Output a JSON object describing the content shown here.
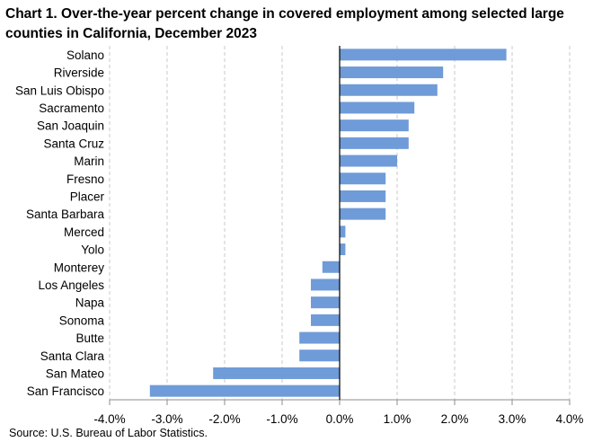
{
  "chart_data": {
    "type": "bar",
    "orientation": "horizontal",
    "title": "Chart 1. Over-the-year percent change in covered employment among selected large counties in California, December 2023",
    "source": "Source: U.S. Bureau of Labor Statistics.",
    "categories": [
      "Solano",
      "Riverside",
      "San Luis Obispo",
      "Sacramento",
      "San Joaquin",
      "Santa Cruz",
      "Marin",
      "Fresno",
      "Placer",
      "Santa Barbara",
      "Merced",
      "Yolo",
      "Monterey",
      "Los Angeles",
      "Napa",
      "Sonoma",
      "Butte",
      "Santa Clara",
      "San Mateo",
      "San Francisco"
    ],
    "values": [
      2.9,
      1.8,
      1.7,
      1.3,
      1.2,
      1.2,
      1.0,
      0.8,
      0.8,
      0.8,
      0.1,
      0.1,
      -0.3,
      -0.5,
      -0.5,
      -0.5,
      -0.7,
      -0.7,
      -2.2,
      -3.3
    ],
    "xlim": [
      -4.0,
      4.0
    ],
    "xticks": [
      -4.0,
      -3.0,
      -2.0,
      -1.0,
      0.0,
      1.0,
      2.0,
      3.0,
      4.0
    ],
    "xtick_labels": [
      "-4.0%",
      "-3.0%",
      "-2.0%",
      "-1.0%",
      "0.0%",
      "1.0%",
      "2.0%",
      "3.0%",
      "4.0%"
    ],
    "xlabel": "",
    "ylabel": "",
    "grid": "vertical dashed",
    "legend": "none",
    "bar_color": "#6f9bd8",
    "grid_color": "#c8c8c8"
  }
}
